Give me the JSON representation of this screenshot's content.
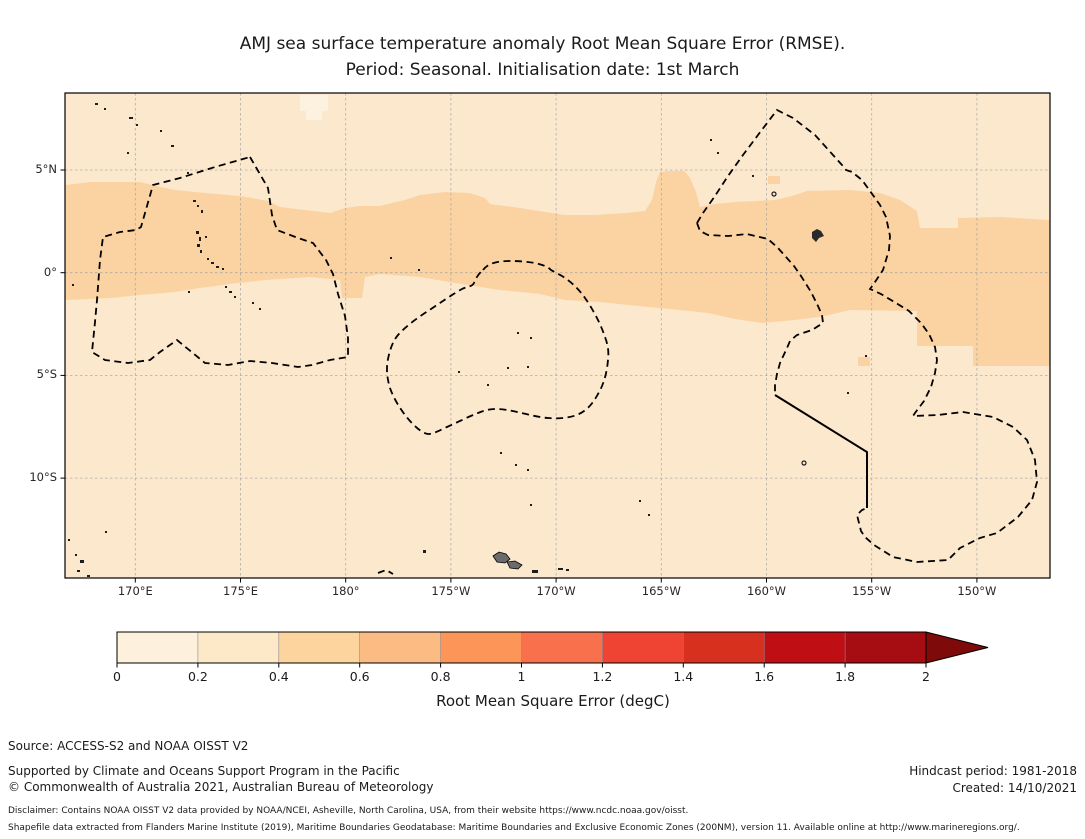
{
  "figure": {
    "title_line1": "AMJ sea surface temperature anomaly Root Mean Square Error (RMSE).",
    "title_line2": "Period: Seasonal. Initialisation date: 1st March"
  },
  "axes": {
    "x_ticks": [
      "170°E",
      "175°E",
      "180°",
      "175°W",
      "170°W",
      "165°W",
      "160°W",
      "155°W",
      "150°W"
    ],
    "y_ticks": [
      "5°N",
      "0°",
      "5°S",
      "10°S"
    ]
  },
  "colorbar": {
    "label": "Root Mean Square Error (degC)",
    "ticks": [
      "0",
      "0.2",
      "0.4",
      "0.6",
      "0.8",
      "1",
      "1.2",
      "1.4",
      "1.6",
      "1.8",
      "2"
    ],
    "bin_colors": [
      "#fdf0dc",
      "#fde8c8",
      "#fdd49e",
      "#fdbb84",
      "#fc9557",
      "#f9704d",
      "#ef4433",
      "#d8301f",
      "#bf0e14",
      "#a50d12"
    ],
    "extend_color": "#7f0a0a",
    "extend": "max"
  },
  "map_colors": {
    "background_bin_0_2_to_0_4": "#fbe8cd",
    "band_bin_0_4_to_0_6": "#fbd3a2",
    "patch_bin_0_to_0_2": "#fdf1df",
    "land": "#1c1c1c",
    "boundary": "#000000",
    "grid": "#9e9e9e"
  },
  "footer": {
    "source": "Source: ACCESS-S2 and NOAA OISST V2",
    "supported": "Supported by Climate and Oceans Support Program in the Pacific",
    "copyright": "© Commonwealth of Australia 2021, Australian Bureau of Meteorology",
    "hindcast": "Hindcast period: 1981-2018",
    "created": "Created: 14/10/2021",
    "disclaimer_line1": "Disclaimer: Contains NOAA OISST V2 data provided by NOAA/NCEI, Asheville, North Carolina, USA, from their website https://www.ncdc.noaa.gov/oisst.",
    "disclaimer_line2": "Shapefile data extracted from Flanders Marine Institute (2019), Maritime Boundaries Geodatabase: Maritime Boundaries and Exclusive Economic Zones (200NM), version 11. Available online at http://www.marineregions.org/."
  },
  "chart_data": {
    "type": "heatmap",
    "title": "AMJ sea surface temperature anomaly Root Mean Square Error (RMSE). Period: Seasonal. Initialisation date: 1st March",
    "x_tick_labels": [
      "170°E",
      "175°E",
      "180°",
      "175°W",
      "170°W",
      "165°W",
      "160°W",
      "155°W",
      "150°W"
    ],
    "y_tick_labels": [
      "5°N",
      "0°",
      "5°S",
      "10°S"
    ],
    "x_range_longitude": [
      "≈166.5°E",
      "≈146.5°W"
    ],
    "y_range_latitude": [
      "≈15°S",
      "≈9°N"
    ],
    "grid": true,
    "legend_position": "horizontal colorbar below map",
    "colorbar": {
      "label": "Root Mean Square Error (degC)",
      "tick_values": [
        0,
        0.2,
        0.4,
        0.6,
        0.8,
        1,
        1.2,
        1.4,
        1.6,
        1.8,
        2
      ],
      "range": [
        0,
        2
      ],
      "extend": "max",
      "bin_colors": [
        "#fdf0dc",
        "#fde8c8",
        "#fdd49e",
        "#fdbb84",
        "#fc9557",
        "#f9704d",
        "#ef4433",
        "#d8301f",
        "#bf0e14",
        "#a50d12"
      ]
    },
    "regions": [
      {
        "rmse_bin_degC": [
          0.2,
          0.4
        ],
        "color": "#fbe8cd",
        "description": "Background value over most of the mapped Pacific region"
      },
      {
        "rmse_bin_degC": [
          0.4,
          0.6
        ],
        "color": "#fbd3a2",
        "description": "Equatorial band roughly 4°N to 1.5°S spanning the full map width, widening and extending south to ≈5°S near the eastern (150°W) edge, with a bump to ≈5°N near 163°W"
      },
      {
        "rmse_bin_degC": [
          0.0,
          0.2
        ],
        "color": "#fdf1df",
        "description": "Small patch near 178°E, 8°N"
      }
    ],
    "overlays": [
      "Dashed black maritime EEZ boundaries (Gilbert Islands, Tuvalu/Tokelau area, Line Islands, Cook Islands area)",
      "Solid black boundary segment near 155°W between ≈10°S and 12°S",
      "Small dark island landmasses (Gilbert Islands chain, Tuvalu, Phoenix/Line Islands, Samoa)",
      "Dashed gray graticule every 5° of latitude and longitude"
    ]
  }
}
